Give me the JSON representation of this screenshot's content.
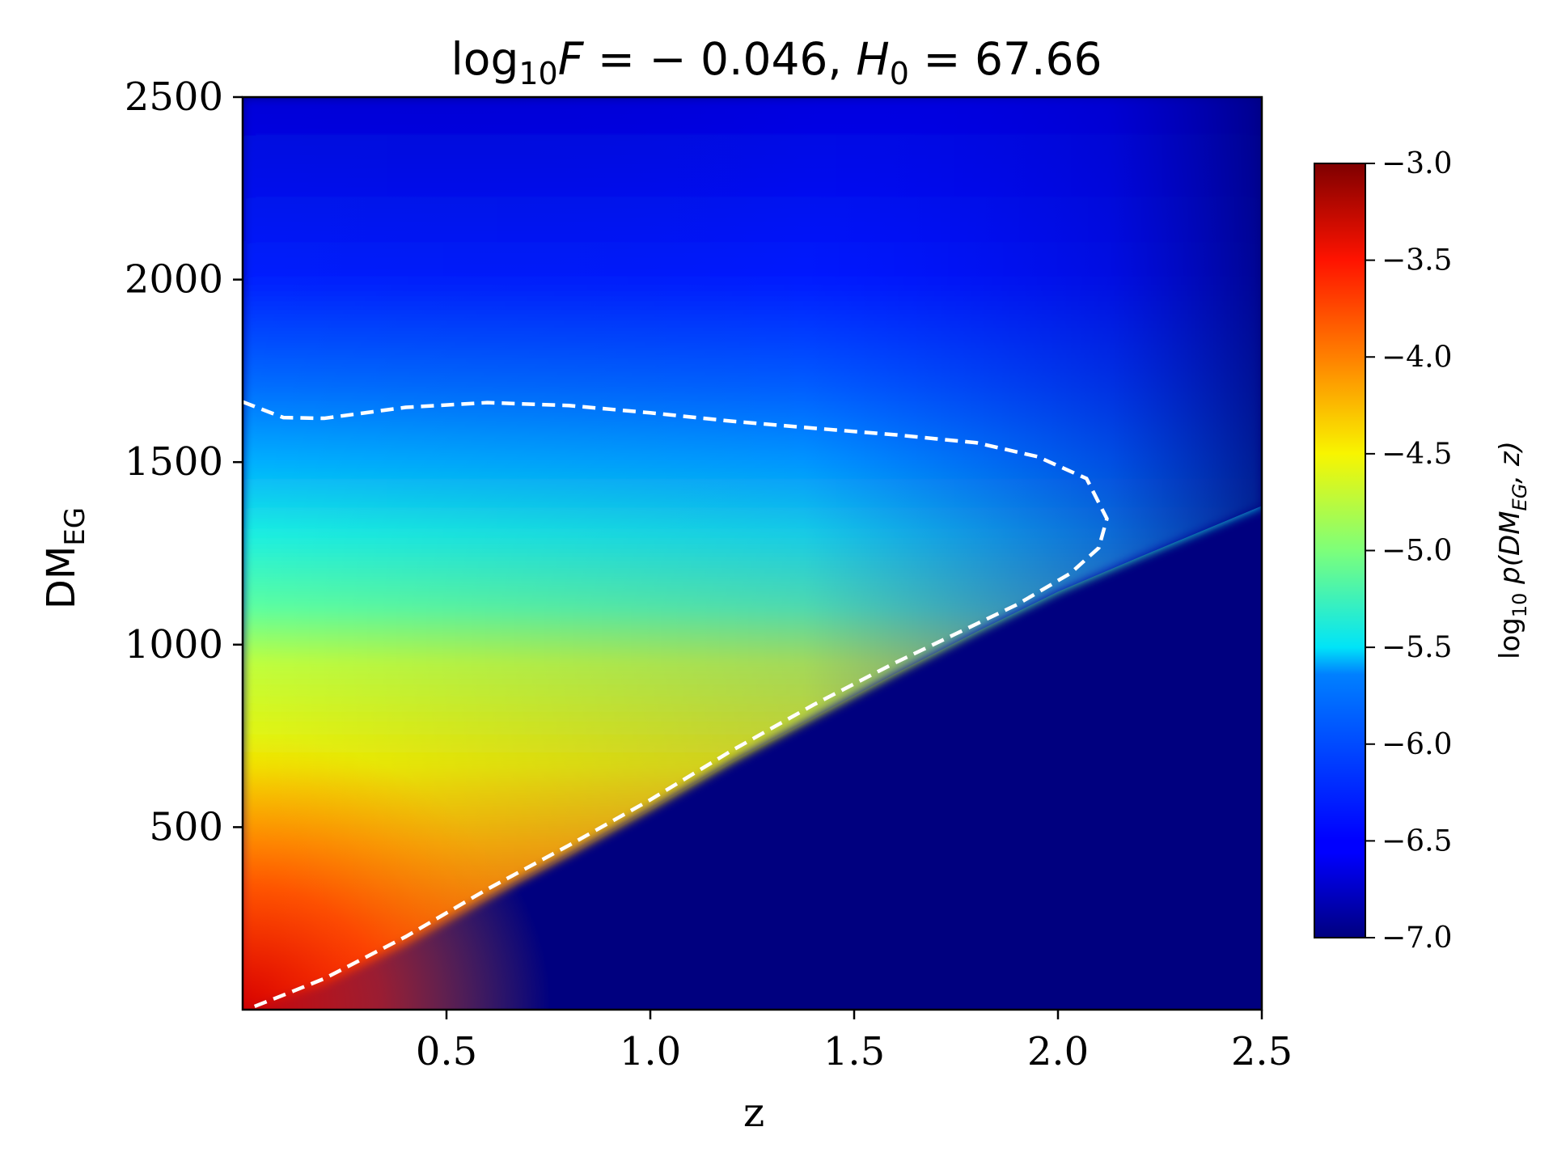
{
  "chart_data": {
    "type": "heatmap",
    "title": {
      "prefix": "log",
      "sub": "10",
      "var": "F",
      "eq": " = − 0.046, ",
      "h": "H",
      "hsub": "0",
      "hval": " = 67.66"
    },
    "xlabel": "z",
    "ylabel": {
      "main": "DM",
      "sub": "EG"
    },
    "xlim": [
      0,
      2.5
    ],
    "ylim": [
      0,
      2500
    ],
    "x_ticks": [
      "0.5",
      "1.0",
      "1.5",
      "2.0",
      "2.5"
    ],
    "x_tick_values": [
      0.5,
      1.0,
      1.5,
      2.0,
      2.5
    ],
    "y_ticks": [
      "500",
      "1000",
      "1500",
      "2000",
      "2500"
    ],
    "y_tick_values": [
      500,
      1000,
      1500,
      2000,
      2500
    ],
    "colorbar": {
      "label": {
        "pre": "log",
        "sub": "10",
        "p": " p(DM",
        "psub": "EG",
        "post": ", z)"
      },
      "range": [
        -7.0,
        -3.0
      ],
      "ticks": [
        "−3.0",
        "−3.5",
        "−4.0",
        "−4.5",
        "−5.0",
        "−5.5",
        "−6.0",
        "−6.5",
        "−7.0"
      ],
      "tick_values": [
        -3.0,
        -3.5,
        -4.0,
        -4.5,
        -5.0,
        -5.5,
        -6.0,
        -6.5,
        -7.0
      ],
      "colormap": "jet"
    },
    "contour": {
      "style": "white dashed",
      "points": [
        [
          0.0,
          1665
        ],
        [
          0.1,
          1622
        ],
        [
          0.2,
          1620
        ],
        [
          0.4,
          1650
        ],
        [
          0.6,
          1663
        ],
        [
          0.8,
          1655
        ],
        [
          1.0,
          1635
        ],
        [
          1.2,
          1612
        ],
        [
          1.4,
          1593
        ],
        [
          1.6,
          1575
        ],
        [
          1.8,
          1553
        ],
        [
          1.95,
          1515
        ],
        [
          2.07,
          1455
        ],
        [
          2.12,
          1345
        ],
        [
          2.1,
          1265
        ],
        [
          2.03,
          1195
        ],
        [
          1.9,
          1110
        ],
        [
          1.75,
          1030
        ],
        [
          1.6,
          950
        ],
        [
          1.4,
          835
        ],
        [
          1.2,
          710
        ],
        [
          1.0,
          575
        ],
        [
          0.8,
          450
        ],
        [
          0.6,
          330
        ],
        [
          0.4,
          200
        ],
        [
          0.2,
          85
        ],
        [
          0.1,
          40
        ],
        [
          0.02,
          5
        ]
      ]
    },
    "colors": {
      "contour": "#ffffff",
      "background": "#00007f"
    }
  }
}
